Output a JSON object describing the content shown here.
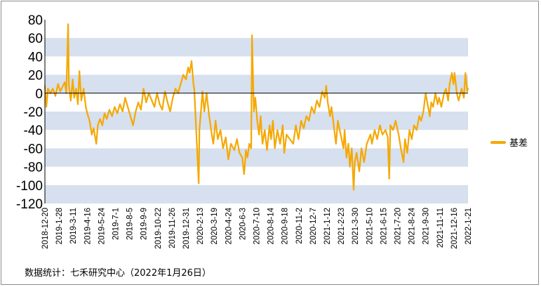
{
  "chart_data": {
    "type": "line",
    "title": "",
    "xlabel": "",
    "ylabel": "",
    "ylim": [
      -120,
      80
    ],
    "yticks": [
      80,
      60,
      40,
      20,
      0,
      -20,
      -40,
      -60,
      -80,
      -100,
      -120
    ],
    "xtick_labels": [
      "2018-12-20",
      "2019-1-28",
      "2019-3-11",
      "2019-4-16",
      "2019-5-24",
      "2019-7-1",
      "2019-8-5",
      "2019-9-9",
      "2019-10-22",
      "2019-11-26",
      "2019-12-31",
      "2020-2-13",
      "2020-3-19",
      "2020-4-24",
      "2020-6-3",
      "2020-7-10",
      "2020-8-14",
      "2020-9-18",
      "2020-11-2",
      "2020-12-7",
      "2021-1-12",
      "2021-2-23",
      "2021-3-30",
      "2021-5-10",
      "2021-6-15",
      "2021-7-20",
      "2021-8-24",
      "2021-9-30",
      "2021-11-11",
      "2021-12-16",
      "2022-1-21"
    ],
    "grid": "alternating horizontal bands",
    "legend_position": "right",
    "series": [
      {
        "name": "基差",
        "color": "#f5a800",
        "points": [
          [
            "2018-12-20",
            8
          ],
          [
            "2018-12-24",
            -15
          ],
          [
            "2018-12-28",
            5
          ],
          [
            "2019-1-4",
            0
          ],
          [
            "2019-1-10",
            5
          ],
          [
            "2019-1-17",
            -3
          ],
          [
            "2019-1-24",
            10
          ],
          [
            "2019-1-30",
            2
          ],
          [
            "2019-2-11",
            12
          ],
          [
            "2019-2-15",
            0
          ],
          [
            "2019-2-20",
            75
          ],
          [
            "2019-2-22",
            8
          ],
          [
            "2019-2-27",
            -8
          ],
          [
            "2019-3-4",
            15
          ],
          [
            "2019-3-8",
            -5
          ],
          [
            "2019-3-13",
            5
          ],
          [
            "2019-3-18",
            -12
          ],
          [
            "2019-3-22",
            24
          ],
          [
            "2019-3-27",
            -8
          ],
          [
            "2019-4-2",
            5
          ],
          [
            "2019-4-8",
            -15
          ],
          [
            "2019-4-12",
            -22
          ],
          [
            "2019-4-18",
            -30
          ],
          [
            "2019-4-24",
            -45
          ],
          [
            "2019-4-29",
            -38
          ],
          [
            "2019-5-6",
            -55
          ],
          [
            "2019-5-10",
            -35
          ],
          [
            "2019-5-16",
            -28
          ],
          [
            "2019-5-22",
            -35
          ],
          [
            "2019-5-28",
            -22
          ],
          [
            "2019-6-3",
            -28
          ],
          [
            "2019-6-10",
            -18
          ],
          [
            "2019-6-17",
            -25
          ],
          [
            "2019-6-24",
            -15
          ],
          [
            "2019-7-1",
            -22
          ],
          [
            "2019-7-8",
            -12
          ],
          [
            "2019-7-15",
            -20
          ],
          [
            "2019-7-22",
            -5
          ],
          [
            "2019-7-29",
            -15
          ],
          [
            "2019-8-5",
            -25
          ],
          [
            "2019-8-12",
            -35
          ],
          [
            "2019-8-19",
            -20
          ],
          [
            "2019-8-26",
            -10
          ],
          [
            "2019-9-2",
            -18
          ],
          [
            "2019-9-9",
            5
          ],
          [
            "2019-9-16",
            -10
          ],
          [
            "2019-9-23",
            0
          ],
          [
            "2019-10-8",
            -15
          ],
          [
            "2019-10-15",
            0
          ],
          [
            "2019-10-22",
            -12
          ],
          [
            "2019-10-29",
            -18
          ],
          [
            "2019-11-5",
            2
          ],
          [
            "2019-11-12",
            -10
          ],
          [
            "2019-11-19",
            -20
          ],
          [
            "2019-11-26",
            -5
          ],
          [
            "2019-12-3",
            5
          ],
          [
            "2019-12-10",
            0
          ],
          [
            "2019-12-17",
            10
          ],
          [
            "2019-12-24",
            20
          ],
          [
            "2019-12-31",
            15
          ],
          [
            "2020-1-6",
            28
          ],
          [
            "2020-1-10",
            22
          ],
          [
            "2020-1-15",
            35
          ],
          [
            "2020-1-20",
            10
          ],
          [
            "2020-1-22",
            5
          ],
          [
            "2020-2-3",
            -98
          ],
          [
            "2020-2-5",
            -40
          ],
          [
            "2020-2-10",
            -15
          ],
          [
            "2020-2-13",
            2
          ],
          [
            "2020-2-18",
            -20
          ],
          [
            "2020-2-24",
            0
          ],
          [
            "2020-3-2",
            -25
          ],
          [
            "2020-3-9",
            -45
          ],
          [
            "2020-3-13",
            -55
          ],
          [
            "2020-3-19",
            -30
          ],
          [
            "2020-3-25",
            -50
          ],
          [
            "2020-4-1",
            -40
          ],
          [
            "2020-4-8",
            -60
          ],
          [
            "2020-4-15",
            -48
          ],
          [
            "2020-4-22",
            -72
          ],
          [
            "2020-4-29",
            -55
          ],
          [
            "2020-5-8",
            -62
          ],
          [
            "2020-5-15",
            -50
          ],
          [
            "2020-5-22",
            -65
          ],
          [
            "2020-5-29",
            -70
          ],
          [
            "2020-6-3",
            -88
          ],
          [
            "2020-6-8",
            -62
          ],
          [
            "2020-6-12",
            -70
          ],
          [
            "2020-6-17",
            -55
          ],
          [
            "2020-6-22",
            -60
          ],
          [
            "2020-6-24",
            63
          ],
          [
            "2020-6-29",
            -20
          ],
          [
            "2020-7-3",
            -5
          ],
          [
            "2020-7-8",
            -30
          ],
          [
            "2020-7-13",
            -45
          ],
          [
            "2020-7-17",
            -25
          ],
          [
            "2020-7-22",
            -55
          ],
          [
            "2020-7-28",
            -40
          ],
          [
            "2020-8-3",
            -62
          ],
          [
            "2020-8-10",
            -35
          ],
          [
            "2020-8-14",
            -50
          ],
          [
            "2020-8-19",
            -30
          ],
          [
            "2020-8-24",
            -60
          ],
          [
            "2020-8-31",
            -40
          ],
          [
            "2020-9-7",
            -55
          ],
          [
            "2020-9-14",
            -35
          ],
          [
            "2020-9-18",
            -65
          ],
          [
            "2020-9-24",
            -45
          ],
          [
            "2020-10-12",
            -55
          ],
          [
            "2020-10-19",
            -35
          ],
          [
            "2020-10-26",
            -50
          ],
          [
            "2020-11-2",
            -30
          ],
          [
            "2020-11-9",
            -38
          ],
          [
            "2020-11-16",
            -25
          ],
          [
            "2020-11-23",
            -30
          ],
          [
            "2020-11-30",
            -15
          ],
          [
            "2020-12-7",
            -22
          ],
          [
            "2020-12-14",
            -8
          ],
          [
            "2020-12-21",
            -15
          ],
          [
            "2020-12-28",
            2
          ],
          [
            "2021-1-4",
            -5
          ],
          [
            "2021-1-8",
            8
          ],
          [
            "2021-1-12",
            -10
          ],
          [
            "2021-1-18",
            -25
          ],
          [
            "2021-1-22",
            -15
          ],
          [
            "2021-1-28",
            -35
          ],
          [
            "2021-2-3",
            -55
          ],
          [
            "2021-2-8",
            -30
          ],
          [
            "2021-2-23",
            -60
          ],
          [
            "2021-2-26",
            -40
          ],
          [
            "2021-3-3",
            -70
          ],
          [
            "2021-3-8",
            -55
          ],
          [
            "2021-3-12",
            -80
          ],
          [
            "2021-3-17",
            -60
          ],
          [
            "2021-3-22",
            -105
          ],
          [
            "2021-3-25",
            -75
          ],
          [
            "2021-3-30",
            -65
          ],
          [
            "2021-4-6",
            -85
          ],
          [
            "2021-4-12",
            -60
          ],
          [
            "2021-4-19",
            -75
          ],
          [
            "2021-4-26",
            -55
          ],
          [
            "2021-5-6",
            -45
          ],
          [
            "2021-5-10",
            -55
          ],
          [
            "2021-5-17",
            -40
          ],
          [
            "2021-5-24",
            -50
          ],
          [
            "2021-5-31",
            -35
          ],
          [
            "2021-6-7",
            -45
          ],
          [
            "2021-6-15",
            -40
          ],
          [
            "2021-6-21",
            -48
          ],
          [
            "2021-6-25",
            -93
          ],
          [
            "2021-6-28",
            -35
          ],
          [
            "2021-7-5",
            -40
          ],
          [
            "2021-7-12",
            -30
          ],
          [
            "2021-7-20",
            -45
          ],
          [
            "2021-7-26",
            -60
          ],
          [
            "2021-8-2",
            -75
          ],
          [
            "2021-8-6",
            -50
          ],
          [
            "2021-8-12",
            -65
          ],
          [
            "2021-8-18",
            -40
          ],
          [
            "2021-8-24",
            -50
          ],
          [
            "2021-8-30",
            -35
          ],
          [
            "2021-9-6",
            -40
          ],
          [
            "2021-9-13",
            -25
          ],
          [
            "2021-9-18",
            -30
          ],
          [
            "2021-9-24",
            -20
          ],
          [
            "2021-9-30",
            0
          ],
          [
            "2021-10-11",
            -25
          ],
          [
            "2021-10-15",
            -10
          ],
          [
            "2021-10-20",
            -15
          ],
          [
            "2021-10-26",
            0
          ],
          [
            "2021-11-1",
            -12
          ],
          [
            "2021-11-5",
            -5
          ],
          [
            "2021-11-11",
            -15
          ],
          [
            "2021-11-17",
            -2
          ],
          [
            "2021-11-23",
            5
          ],
          [
            "2021-11-29",
            -8
          ],
          [
            "2021-12-3",
            10
          ],
          [
            "2021-12-9",
            22
          ],
          [
            "2021-12-13",
            10
          ],
          [
            "2021-12-16",
            22
          ],
          [
            "2021-12-22",
            0
          ],
          [
            "2021-12-27",
            -8
          ],
          [
            "2022-1-4",
            5
          ],
          [
            "2022-1-10",
            -5
          ],
          [
            "2022-1-14",
            22
          ],
          [
            "2022-1-19",
            2
          ],
          [
            "2022-1-21",
            5
          ]
        ]
      }
    ]
  },
  "legend": {
    "label": "基差",
    "color": "#f5a800"
  },
  "source_note": "数据统计：七禾研究中心（2022年1月26日）"
}
